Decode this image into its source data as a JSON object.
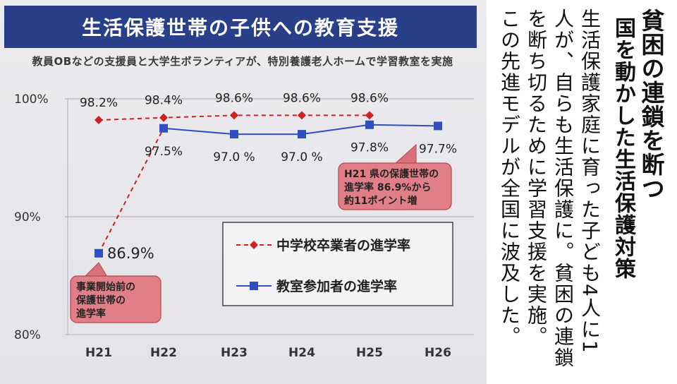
{
  "title": "生活保護世帯の子供への教育支援",
  "subtitle": "教員OBなどの支援員と大学生ボランティアが、特別養護老人ホームで学習教室を実施",
  "chart_data": {
    "type": "line",
    "x": [
      "H21",
      "H22",
      "H23",
      "H24",
      "H25",
      "H26"
    ],
    "yticks": [
      "100%",
      "90%",
      "80%"
    ],
    "ylim": [
      80,
      100
    ],
    "grid": true,
    "legend_position": "center",
    "series": [
      {
        "name": "中学校卒業者の進学率",
        "color": "#cc2222",
        "marker": "diamond",
        "dashed": true,
        "values": [
          98.2,
          98.4,
          98.6,
          98.6,
          98.6,
          null
        ],
        "labels": [
          "98.2%",
          "98.4%",
          "98.6%",
          "98.6%",
          "98.6%",
          ""
        ]
      },
      {
        "name": "教室参加者の進学率",
        "color": "#2f4fbf",
        "marker": "square",
        "dashed": false,
        "values": [
          86.9,
          97.5,
          97.0,
          97.0,
          97.8,
          97.7
        ],
        "labels": [
          "86.9%",
          "97.5%",
          "97.0 %",
          "97.0 %",
          "97.8%",
          "97.7%"
        ]
      }
    ],
    "connector": {
      "from_series": 1,
      "from_index": 0,
      "to_index": 1,
      "color": "#cc2222",
      "dashed": true
    },
    "annotations": [
      {
        "text": [
          "H21 県の保護世帯の",
          "進学率 86.9%から",
          "約11ポイント増"
        ]
      },
      {
        "text": [
          "事業開始前の",
          "保護世帯の",
          "進学率"
        ]
      }
    ]
  },
  "right_text": {
    "headline": [
      "貧困の連鎖を断つ",
      "国を動かした生活保護対策"
    ],
    "body": [
      "生活保護家庭に育った子ども4人に1",
      "人が、自らも生活保護に。貧困の連鎖",
      "を断ち切るために学習支援を実施。",
      "この先進モデルが全国に波及した。"
    ]
  }
}
